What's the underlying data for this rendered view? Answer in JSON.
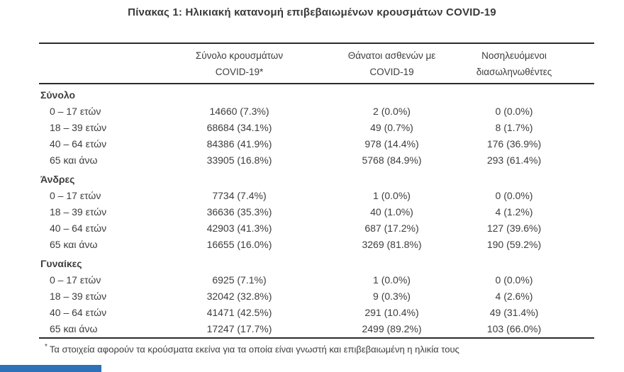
{
  "chart_data": {
    "type": "table",
    "title": "Πίνακας 1: Ηλικιακή κατανομή επιβεβαιωμένων κρουσμάτων COVID-19",
    "columns": [
      {
        "label": "Σύνολο κρουσμάτων COVID-19*",
        "line1": "Σύνολο κρουσμάτων",
        "line2": "COVID-19*"
      },
      {
        "label": "Θάνατοι ασθενών με COVID-19",
        "line1": "Θάνατοι ασθενών με",
        "line2": "COVID-19"
      },
      {
        "label": "Νοσηλευόμενοι διασωληνωθέντες",
        "line1": "Νοσηλευόμενοι",
        "line2": "διασωληνωθέντες"
      }
    ],
    "sections": [
      {
        "name": "Σύνολο",
        "rows": [
          {
            "label": "0 – 17 ετών",
            "cases": "14660 (7.3%)",
            "deaths": "2 (0.0%)",
            "intubated": "0 (0.0%)"
          },
          {
            "label": "18 – 39 ετών",
            "cases": "68684 (34.1%)",
            "deaths": "49 (0.7%)",
            "intubated": "8 (1.7%)"
          },
          {
            "label": "40 – 64 ετών",
            "cases": "84386 (41.9%)",
            "deaths": "978 (14.4%)",
            "intubated": "176 (36.9%)"
          },
          {
            "label": "65 και άνω",
            "cases": "33905 (16.8%)",
            "deaths": "5768 (84.9%)",
            "intubated": "293 (61.4%)"
          }
        ]
      },
      {
        "name": "Άνδρες",
        "rows": [
          {
            "label": "0 – 17 ετών",
            "cases": "7734 (7.4%)",
            "deaths": "1 (0.0%)",
            "intubated": "0 (0.0%)"
          },
          {
            "label": "18 – 39 ετών",
            "cases": "36636 (35.3%)",
            "deaths": "40 (1.0%)",
            "intubated": "4 (1.2%)"
          },
          {
            "label": "40 – 64 ετών",
            "cases": "42903 (41.3%)",
            "deaths": "687 (17.2%)",
            "intubated": "127 (39.6%)"
          },
          {
            "label": "65 και άνω",
            "cases": "16655 (16.0%)",
            "deaths": "3269 (81.8%)",
            "intubated": "190 (59.2%)"
          }
        ]
      },
      {
        "name": "Γυναίκες",
        "rows": [
          {
            "label": "0 – 17 ετών",
            "cases": "6925 (7.1%)",
            "deaths": "1 (0.0%)",
            "intubated": "0 (0.0%)"
          },
          {
            "label": "18 – 39 ετών",
            "cases": "32042 (32.8%)",
            "deaths": "9 (0.3%)",
            "intubated": "4 (2.6%)"
          },
          {
            "label": "40 – 64 ετών",
            "cases": "41471 (42.5%)",
            "deaths": "291 (10.4%)",
            "intubated": "49 (31.4%)"
          },
          {
            "label": "65 και άνω",
            "cases": "17247 (17.7%)",
            "deaths": "2499 (89.2%)",
            "intubated": "103 (66.0%)"
          }
        ]
      }
    ],
    "footnote_marker": "*",
    "footnote_text": "Τα στοιχεία αφορούν τα κρούσματα εκείνα για τα οποία είναι γνωστή και επιβεβαιωμένη η ηλικία τους"
  },
  "colors": {
    "text": "#3d3d3d",
    "rule": "#2b2b2b",
    "footer_bar": "#2e71b8"
  }
}
